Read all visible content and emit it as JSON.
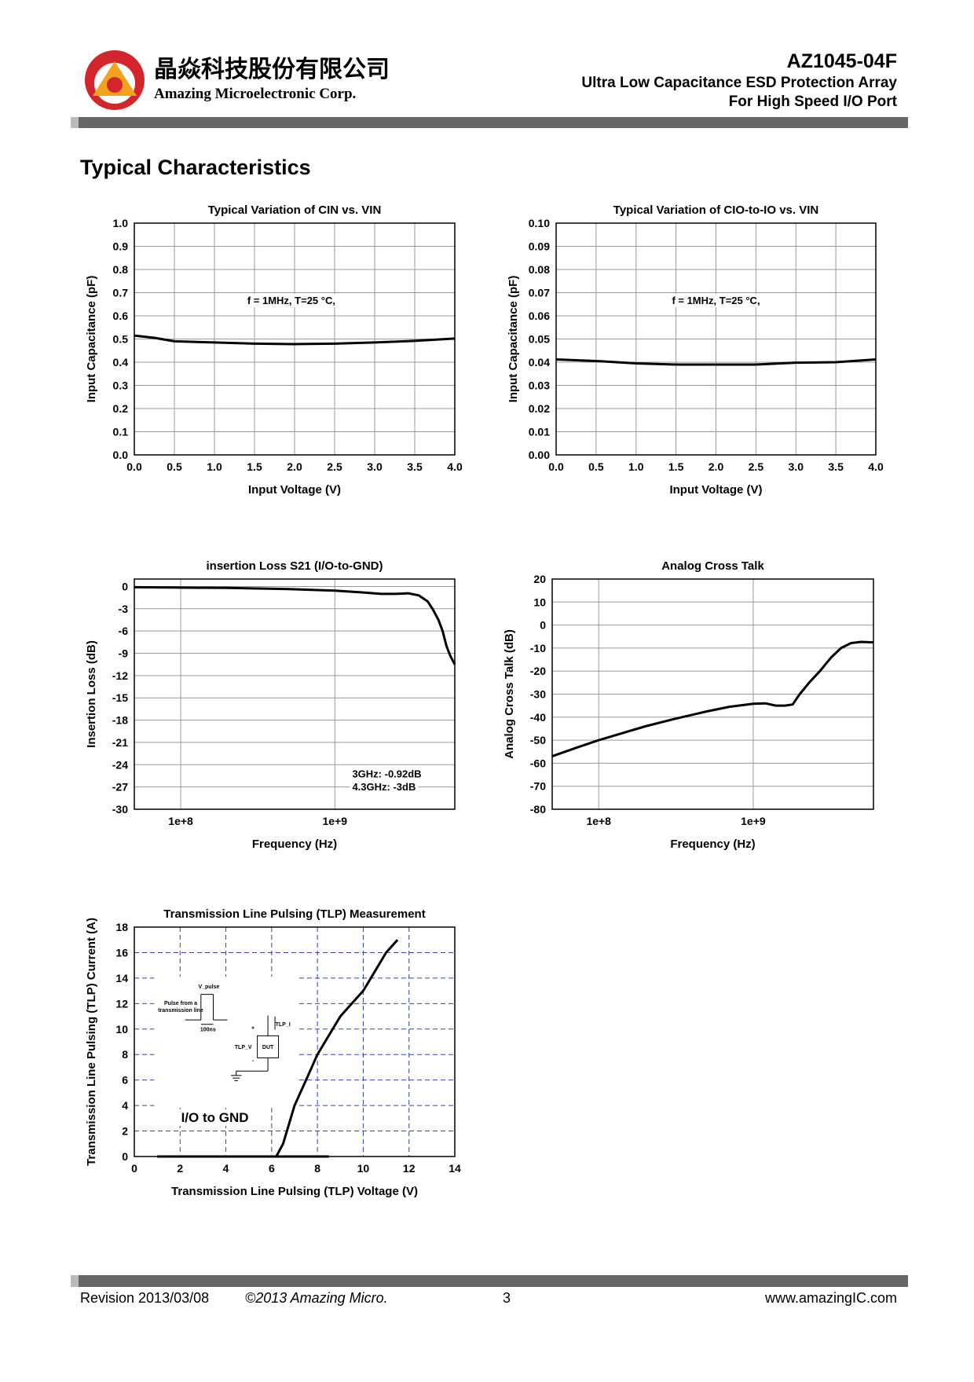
{
  "header": {
    "company_cn": "晶焱科技股份有限公司",
    "company_en": "Amazing Microelectronic Corp.",
    "part": "AZ1045-04F",
    "subtitle1": "Ultra Low Capacitance ESD Protection Array",
    "subtitle2": "For High Speed I/O Port"
  },
  "section_title": "Typical Characteristics",
  "chart_data": [
    {
      "type": "line",
      "title": "Typical Variation of CIN vs. VIN",
      "xlabel": "Input Voltage (V)",
      "ylabel": "Input Capacitance (pF)",
      "xlim": [
        0,
        4
      ],
      "ylim": [
        0,
        1
      ],
      "xticks": [
        {
          "value": 0,
          "label": "0.0"
        },
        0.5,
        {
          "value": 1,
          "label": "1.0"
        },
        1.5,
        {
          "value": 2,
          "label": "2.0"
        },
        2.5,
        {
          "value": 3,
          "label": "3.0"
        },
        3.5,
        {
          "value": 4,
          "label": "4.0"
        }
      ],
      "yticks": [
        {
          "value": 0,
          "label": "0.0"
        },
        0.1,
        0.2,
        0.3,
        0.4,
        0.5,
        0.6,
        0.7,
        0.8,
        0.9,
        {
          "value": 1,
          "label": "1.0"
        }
      ],
      "grid": true,
      "grid_color": "#999999",
      "annotations": [
        "f = 1MHz, T=25 °C,"
      ],
      "series": [
        {
          "color": "#000000",
          "x": [
            0,
            0.25,
            0.5,
            1,
            1.5,
            2,
            2.5,
            3,
            3.5,
            4
          ],
          "values": [
            0.515,
            0.505,
            0.49,
            0.485,
            0.48,
            0.478,
            0.48,
            0.485,
            0.492,
            0.502
          ]
        }
      ]
    },
    {
      "type": "line",
      "title": "Typical Variation of CIO-to-IO vs. VIN",
      "xlabel": "Input Voltage (V)",
      "ylabel": "Input Capacitance (pF)",
      "xlim": [
        0,
        4
      ],
      "ylim": [
        0,
        0.1
      ],
      "xticks": [
        {
          "value": 0,
          "label": "0.0"
        },
        0.5,
        {
          "value": 1,
          "label": "1.0"
        },
        1.5,
        {
          "value": 2,
          "label": "2.0"
        },
        2.5,
        {
          "value": 3,
          "label": "3.0"
        },
        3.5,
        {
          "value": 4,
          "label": "4.0"
        }
      ],
      "yticks": [
        {
          "value": 0,
          "label": "0.00"
        },
        0.01,
        0.02,
        0.03,
        0.04,
        0.05,
        0.06,
        0.07,
        0.08,
        0.09,
        {
          "value": 0.1,
          "label": "0.10"
        }
      ],
      "grid": true,
      "grid_color": "#999999",
      "annotations": [
        "f = 1MHz, T=25 °C,"
      ],
      "series": [
        {
          "color": "#000000",
          "x": [
            0,
            0.5,
            1,
            1.5,
            2,
            2.5,
            3,
            3.5,
            4
          ],
          "values": [
            0.0412,
            0.0405,
            0.0395,
            0.039,
            0.039,
            0.039,
            0.0398,
            0.04,
            0.0412
          ]
        }
      ]
    },
    {
      "type": "line",
      "title": "insertion Loss S21 (I/O-to-GND)",
      "xlabel": "Frequency (Hz)",
      "ylabel": "Insertion Loss (dB)",
      "xlog": true,
      "xlim": [
        50000000.0,
        6000000000.0
      ],
      "ylim": [
        -30,
        1
      ],
      "xticks": [
        {
          "value": 100000000.0,
          "label": "1e+8"
        },
        {
          "value": 1000000000.0,
          "label": "1e+9"
        }
      ],
      "yticks": [
        0,
        -3,
        -6,
        -9,
        -12,
        -15,
        -18,
        -21,
        -24,
        -27,
        -30
      ],
      "grid": true,
      "grid_color": "#999999",
      "annotations": [
        "3GHz: -0.92dB",
        "4.3GHz: -3dB"
      ],
      "series": [
        {
          "color": "#000000",
          "x": [
            50000000.0,
            100000000.0,
            200000000.0,
            500000000.0,
            1000000000.0,
            1500000000.0,
            2000000000.0,
            2500000000.0,
            3000000000.0,
            3500000000.0,
            4000000000.0,
            4300000000.0,
            4700000000.0,
            5000000000.0,
            5300000000.0,
            5600000000.0,
            6000000000.0
          ],
          "values": [
            -0.1,
            -0.15,
            -0.2,
            -0.35,
            -0.55,
            -0.8,
            -1.0,
            -1.0,
            -0.92,
            -1.2,
            -2.0,
            -3.0,
            -4.5,
            -6,
            -8,
            -9.3,
            -10.5
          ]
        }
      ]
    },
    {
      "type": "line",
      "title": "Analog Cross Talk",
      "xlabel": "Frequency (Hz)",
      "ylabel": "Analog Cross Talk (dB)",
      "xlog": true,
      "xlim": [
        50000000.0,
        6000000000.0
      ],
      "ylim": [
        -80,
        20
      ],
      "xticks": [
        {
          "value": 100000000.0,
          "label": "1e+8"
        },
        {
          "value": 1000000000.0,
          "label": "1e+9"
        }
      ],
      "yticks": [
        20,
        10,
        0,
        -10,
        -20,
        -30,
        -40,
        -50,
        -60,
        -70,
        -80
      ],
      "grid": true,
      "grid_color": "#999999",
      "annotations": [],
      "series": [
        {
          "color": "#000000",
          "x": [
            50000000.0,
            70000000.0,
            100000000.0,
            200000000.0,
            300000000.0,
            500000000.0,
            700000000.0,
            1000000000.0,
            1200000000.0,
            1400000000.0,
            1600000000.0,
            1800000000.0,
            2000000000.0,
            2300000000.0,
            2700000000.0,
            3200000000.0,
            3700000000.0,
            4300000000.0,
            5000000000.0,
            6000000000.0
          ],
          "values": [
            -57,
            -53.5,
            -50,
            -44,
            -41,
            -37.5,
            -35.5,
            -34.2,
            -34,
            -35,
            -35,
            -34.5,
            -30,
            -25,
            -20,
            -14,
            -10,
            -7.8,
            -7.3,
            -7.5
          ]
        }
      ]
    },
    {
      "type": "line",
      "title": "Transmission Line Pulsing (TLP) Measurement",
      "xlabel": "Transmission Line Pulsing (TLP) Voltage (V)",
      "ylabel": "Transmission Line Pulsing (TLP) Current (A)",
      "xlim": [
        0,
        14
      ],
      "ylim": [
        0,
        18
      ],
      "xticks": [
        0,
        2,
        4,
        6,
        8,
        10,
        12,
        14
      ],
      "yticks": [
        0,
        2,
        4,
        6,
        8,
        10,
        12,
        14,
        16,
        18
      ],
      "grid": true,
      "grid_color": "#3344aa",
      "grid_dash": true,
      "annotations": [
        "I/O to GND"
      ],
      "inset_labels": [
        "V_pulse",
        "Pulse from a",
        "transmission line",
        "100ns",
        "+",
        "TLP_I",
        "TLP_V",
        "DUT",
        "-"
      ],
      "series": [
        {
          "color": "#000000",
          "x": [
            1,
            3,
            5,
            7,
            8.5,
            null,
            6.2,
            6.5,
            7,
            7.5,
            8,
            8.5,
            9,
            9.5,
            10,
            10.5,
            11,
            11.5
          ],
          "values": [
            0,
            0,
            0,
            0,
            0,
            null,
            0,
            1,
            4,
            6,
            8,
            9.5,
            11,
            12,
            13,
            14.5,
            16,
            17
          ]
        }
      ]
    }
  ],
  "footer": {
    "revision": "Revision 2013/03/08",
    "copyright": "©2013 Amazing Micro.",
    "page": "3",
    "website": "www.amazingIC.com"
  }
}
